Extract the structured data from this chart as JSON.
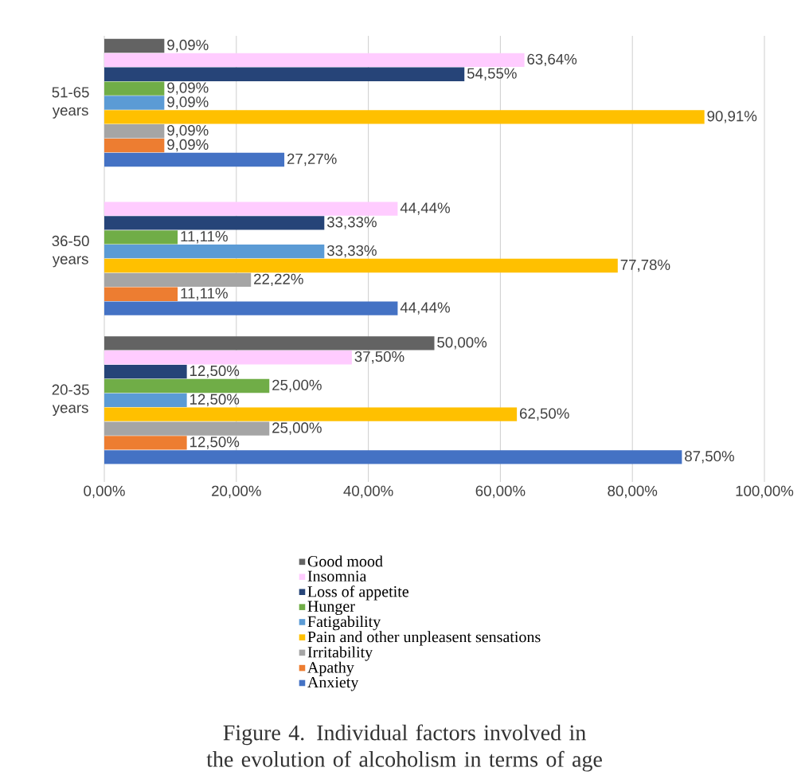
{
  "chart_data": {
    "type": "bar",
    "orientation": "horizontal",
    "title": "Figure 4. Individual factors involved in the evolution of alcoholism in terms of age",
    "categories": [
      "51-65 years",
      "36-50 years",
      "20-35 years"
    ],
    "series": [
      {
        "name": "Anxiety",
        "color": "#4472c4",
        "values": [
          27.27,
          44.44,
          87.5
        ],
        "value_labels": [
          "27,27%",
          "44,44%",
          "87,50%"
        ]
      },
      {
        "name": "Apathy",
        "color": "#ed7d31",
        "values": [
          9.09,
          11.11,
          12.5
        ],
        "value_labels": [
          "9,09%",
          "11,11%",
          "12,50%"
        ]
      },
      {
        "name": "Irritability",
        "color": "#a5a5a5",
        "values": [
          9.09,
          22.22,
          25
        ],
        "value_labels": [
          "9,09%",
          "22,22%",
          "25,00%"
        ]
      },
      {
        "name": "Pain and other unpleasent sensations",
        "color": "#ffc000",
        "values": [
          90.91,
          77.78,
          62.5
        ],
        "value_labels": [
          "90,91%",
          "77,78%",
          "62,50%"
        ]
      },
      {
        "name": "Fatigability",
        "color": "#5b9bd5",
        "values": [
          9.09,
          33.33,
          12.5
        ],
        "value_labels": [
          "9,09%",
          "33,33%",
          "12,50%"
        ]
      },
      {
        "name": "Hunger",
        "color": "#70ad47",
        "values": [
          9.09,
          11.11,
          25
        ],
        "value_labels": [
          "9,09%",
          "11,11%",
          "25,00%"
        ]
      },
      {
        "name": "Loss of appetite",
        "color": "#264478",
        "values": [
          54.55,
          33.33,
          12.5
        ],
        "value_labels": [
          "54,55%",
          "33,33%",
          "12,50%"
        ]
      },
      {
        "name": "Insomnia",
        "color": "#ffccff",
        "values": [
          63.64,
          44.44,
          37.5
        ],
        "value_labels": [
          "63,64%",
          "44,44%",
          "37,50%"
        ]
      },
      {
        "name": "Good mood",
        "color": "#636363",
        "values": [
          9.09,
          null,
          50
        ],
        "value_labels": [
          "9,09%",
          null,
          "50,00%"
        ]
      }
    ],
    "xlim": [
      0,
      100
    ],
    "xticks": [
      {
        "value": 0,
        "label": "0,00%"
      },
      {
        "value": 20,
        "label": "20,00%"
      },
      {
        "value": 40,
        "label": "40,00%"
      },
      {
        "value": 60,
        "label": "60,00%"
      },
      {
        "value": 80,
        "label": "80,00%"
      },
      {
        "value": 100,
        "label": "100,00%"
      }
    ],
    "grid": "x",
    "legend": "bottom"
  }
}
